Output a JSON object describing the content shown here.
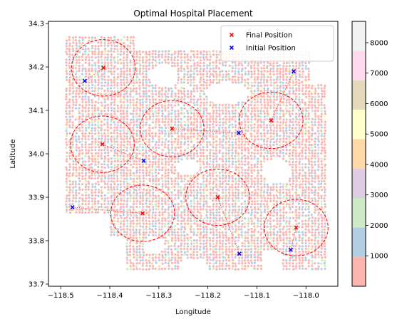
{
  "chart_data": {
    "type": "scatter",
    "title": "Optimal Hospital Placement",
    "xlabel": "Longitude",
    "ylabel": "Latitude",
    "xlim": [
      -118.525,
      -117.935
    ],
    "ylim": [
      33.695,
      34.305
    ],
    "xticks": [
      -118.5,
      -118.4,
      -118.3,
      -118.2,
      -118.1,
      -118.0
    ],
    "xtick_labels": [
      "−118.5",
      "−118.4",
      "−118.3",
      "−118.2",
      "−118.1",
      "−118.0"
    ],
    "yticks": [
      33.7,
      33.8,
      33.9,
      34.0,
      34.1,
      34.2,
      34.3
    ],
    "ytick_labels": [
      "33.7",
      "33.8",
      "33.9",
      "34.0",
      "34.1",
      "34.2",
      "34.3"
    ],
    "grid": false,
    "legend": {
      "placement": "top-right",
      "entries": [
        {
          "label": "Final Position",
          "color": "#ff0000",
          "marker": "x"
        },
        {
          "label": "Initial Position",
          "color": "#0000ff",
          "marker": "x"
        }
      ]
    },
    "colorbar": {
      "colormap": "Pastel1",
      "range": [
        0,
        8700
      ],
      "ticks": [
        1000,
        2000,
        3000,
        4000,
        5000,
        6000,
        7000,
        8000
      ],
      "tick_labels": [
        "1000",
        "2000",
        "3000",
        "4000",
        "5000",
        "6000",
        "7000",
        "8000"
      ],
      "bands": [
        "#fbb4ae",
        "#b3cde3",
        "#ccebc5",
        "#decbe4",
        "#fed9a6",
        "#ffffcc",
        "#e5d8bd",
        "#fddaec",
        "#f2f2f2"
      ]
    },
    "coverage_radius_deg": 0.065,
    "series": [
      {
        "name": "Final Position",
        "color": "#ff0000",
        "points": [
          {
            "x": -118.413,
            "y": 34.198
          },
          {
            "x": -118.415,
            "y": 34.022
          },
          {
            "x": -118.273,
            "y": 34.058
          },
          {
            "x": -118.071,
            "y": 34.077
          },
          {
            "x": -118.18,
            "y": 33.9
          },
          {
            "x": -118.333,
            "y": 33.863
          },
          {
            "x": -118.02,
            "y": 33.83
          }
        ]
      },
      {
        "name": "Initial Position",
        "color": "#0000ff",
        "points": [
          {
            "x": -118.451,
            "y": 34.168
          },
          {
            "x": -118.331,
            "y": 33.984
          },
          {
            "x": -118.137,
            "y": 34.048
          },
          {
            "x": -118.025,
            "y": 34.19
          },
          {
            "x": -118.136,
            "y": 33.77
          },
          {
            "x": -118.476,
            "y": 33.877
          },
          {
            "x": -118.031,
            "y": 33.779
          }
        ]
      }
    ]
  }
}
